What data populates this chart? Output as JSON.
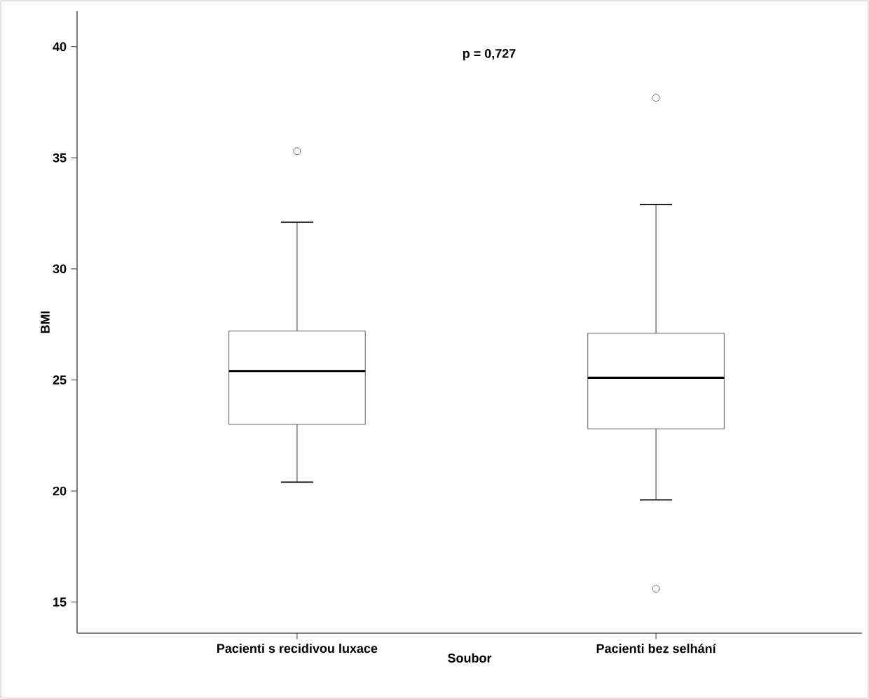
{
  "chart_data": {
    "type": "box",
    "categories": [
      "Pacienti s recidivou luxace",
      "Pacienti bez selhání"
    ],
    "boxes": [
      {
        "low": 20.4,
        "q1": 23.0,
        "median": 25.4,
        "q3": 27.2,
        "high": 32.1,
        "outliers": [
          35.3
        ]
      },
      {
        "low": 19.6,
        "q1": 22.8,
        "median": 25.1,
        "q3": 27.1,
        "high": 32.9,
        "outliers": [
          37.7,
          15.6
        ]
      }
    ],
    "xlabel": "Soubor",
    "ylabel": "BMI",
    "ylim": [
      13.6,
      41.6
    ],
    "yticks": [
      15,
      20,
      25,
      30,
      35,
      40
    ],
    "annotations": [
      "p = 0,727"
    ],
    "grid": false
  }
}
